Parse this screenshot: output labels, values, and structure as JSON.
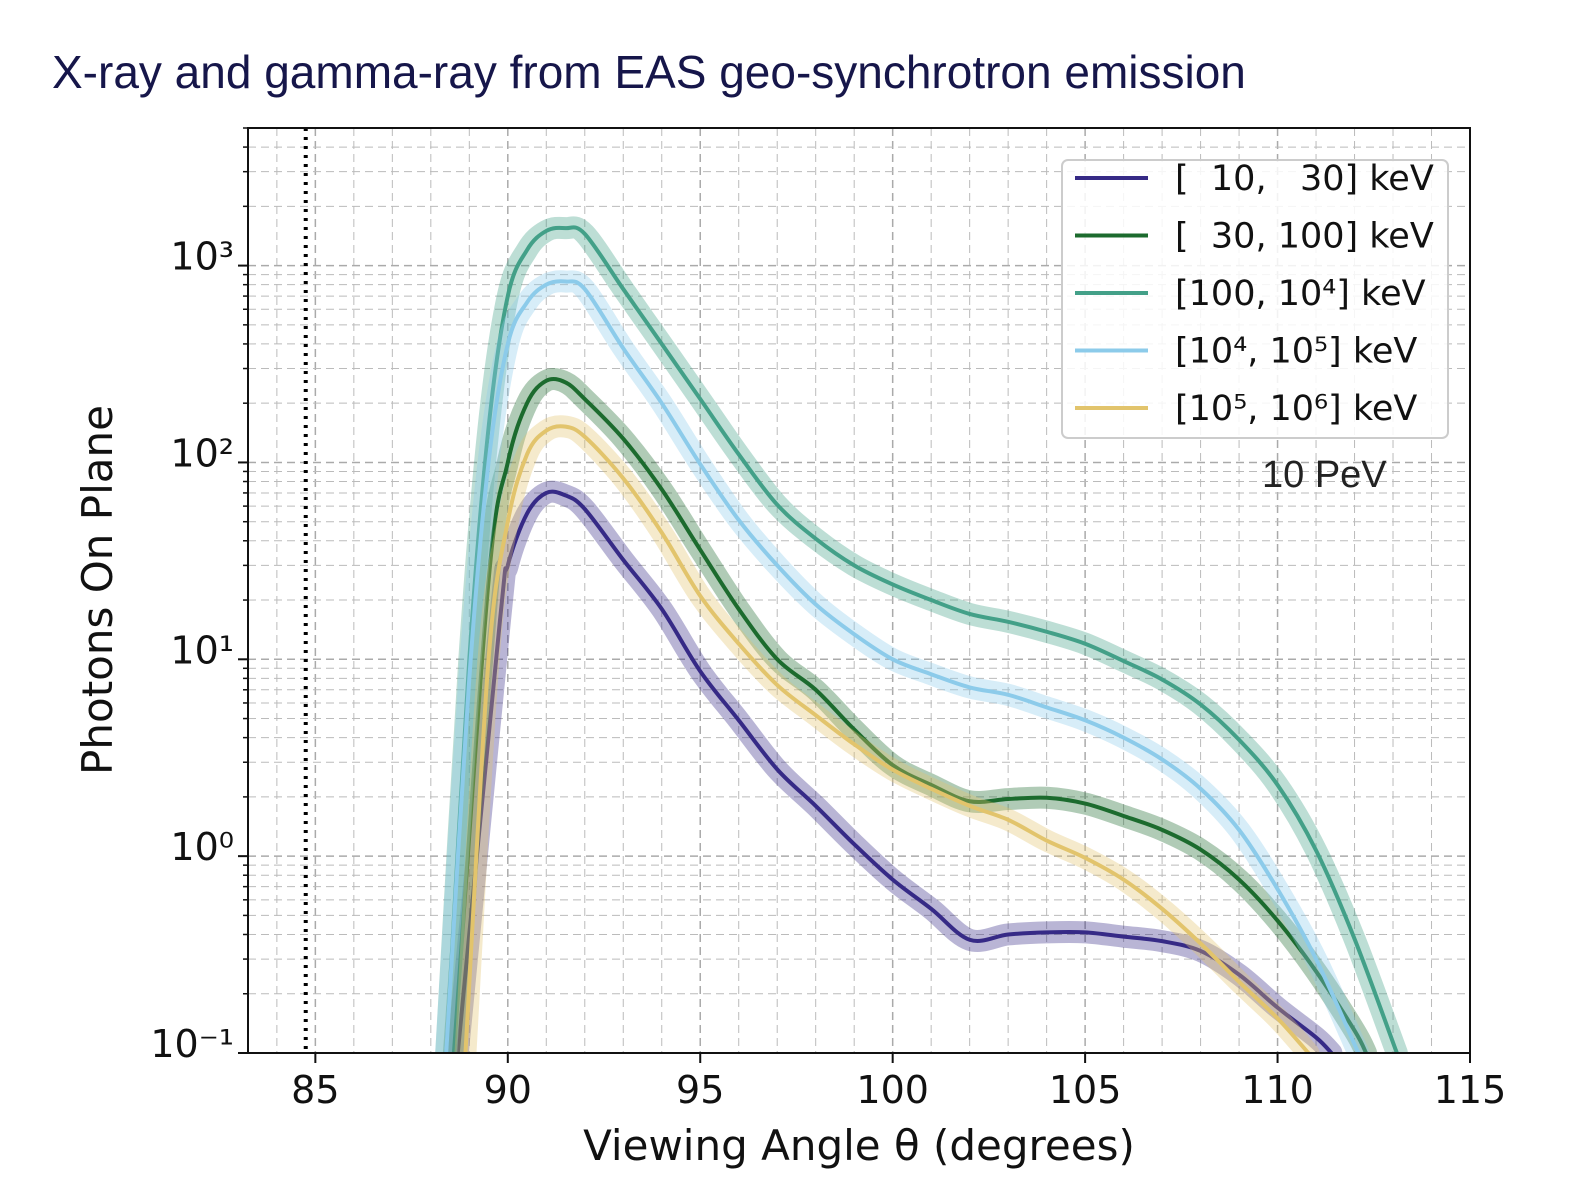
{
  "chart_data": {
    "type": "line",
    "title": "X-ray and gamma-ray from EAS geo-synchrotron emission",
    "xlabel": "Viewing Angle θ (degrees)",
    "ylabel": "Photons On Plane",
    "annotation": "10 PeV",
    "log_y": true,
    "grid": true,
    "legend": "upper right",
    "xlim": [
      83.25,
      115
    ],
    "ylim": [
      0.1,
      5000
    ],
    "xticks": [
      85,
      90,
      95,
      100,
      105,
      110,
      115
    ],
    "yticks": [
      {
        "value": 0.1,
        "label": "10⁻¹"
      },
      {
        "value": 1,
        "label": "10⁰"
      },
      {
        "value": 10,
        "label": "10¹"
      },
      {
        "value": 100,
        "label": "10²"
      },
      {
        "value": 1000,
        "label": "10³"
      }
    ],
    "reference_x": 84.75,
    "series": [
      {
        "name": "[  10,   30] keV",
        "color": "#362a86",
        "x": [
          88.7,
          89.8,
          90,
          90.5,
          91,
          91.5,
          92,
          93,
          94,
          95,
          96,
          97,
          98,
          99,
          100,
          101,
          102,
          103,
          104,
          105,
          106,
          107,
          108,
          109,
          110,
          111,
          111.4
        ],
        "values": [
          0.1,
          16,
          30,
          55,
          70,
          68,
          58,
          32,
          18,
          8.7,
          4.9,
          2.76,
          1.8,
          1.15,
          0.76,
          0.54,
          0.376,
          0.4,
          0.41,
          0.41,
          0.39,
          0.37,
          0.33,
          0.25,
          0.17,
          0.12,
          0.1
        ]
      },
      {
        "name": "[  30, 100] keV",
        "color": "#1c6b2e",
        "x": [
          88.6,
          89.5,
          90,
          90.5,
          91,
          91.5,
          92,
          93,
          94,
          95,
          96,
          97,
          98,
          99,
          100,
          101,
          102,
          103,
          104,
          105,
          106,
          107,
          108,
          109,
          110,
          111,
          112,
          112.3
        ],
        "values": [
          0.1,
          25,
          100,
          200,
          260,
          255,
          210,
          132,
          73,
          36,
          18,
          10,
          7,
          4.4,
          2.9,
          2.3,
          1.9,
          1.95,
          1.98,
          1.85,
          1.6,
          1.36,
          1.08,
          0.76,
          0.47,
          0.26,
          0.13,
          0.1
        ]
      },
      {
        "name": "[100, 10⁴] keV",
        "color": "#43a088",
        "x": [
          88.4,
          89,
          89.5,
          90,
          90.5,
          91,
          91.5,
          92,
          93,
          94,
          95,
          96,
          97,
          98,
          99,
          100,
          101,
          102,
          103,
          104,
          105,
          106,
          107,
          108,
          109,
          110,
          111,
          112,
          113.1
        ],
        "values": [
          0.1,
          10,
          150,
          700,
          1200,
          1500,
          1550,
          1450,
          760,
          400,
          210,
          110,
          61,
          41,
          30,
          24,
          20,
          17,
          15.5,
          13.8,
          12,
          9.8,
          7.9,
          5.9,
          3.9,
          2.3,
          1.07,
          0.38,
          0.1
        ]
      },
      {
        "name": "[10⁴, 10⁵] keV",
        "color": "#8ccbea",
        "x": [
          88.4,
          89,
          89.5,
          90,
          90.5,
          91,
          91.5,
          92,
          93,
          94,
          95,
          96,
          97,
          98,
          99,
          100,
          101,
          102,
          103,
          104,
          105,
          106,
          107,
          108,
          109,
          110,
          111,
          112.1
        ],
        "values": [
          0.1,
          8,
          100,
          400,
          650,
          800,
          830,
          760,
          380,
          200,
          98,
          51,
          30,
          19,
          13.4,
          10,
          8.4,
          7.2,
          6.6,
          5.7,
          4.9,
          4.0,
          3.1,
          2.2,
          1.36,
          0.68,
          0.3,
          0.1
        ]
      },
      {
        "name": "[10⁵, 10⁶] keV",
        "color": "#e2c46c",
        "x": [
          88.9,
          89.5,
          90,
          90.5,
          91,
          91.5,
          92,
          93,
          94,
          95,
          96,
          97,
          98,
          99,
          100,
          101,
          102,
          103,
          104,
          105,
          106,
          107,
          108,
          109,
          110,
          110.8
        ],
        "values": [
          0.1,
          10,
          50,
          110,
          145,
          152,
          135,
          83,
          44,
          21,
          12,
          7.4,
          5.2,
          3.7,
          2.75,
          2.2,
          1.8,
          1.53,
          1.2,
          0.98,
          0.76,
          0.54,
          0.36,
          0.23,
          0.15,
          0.1
        ]
      }
    ]
  }
}
